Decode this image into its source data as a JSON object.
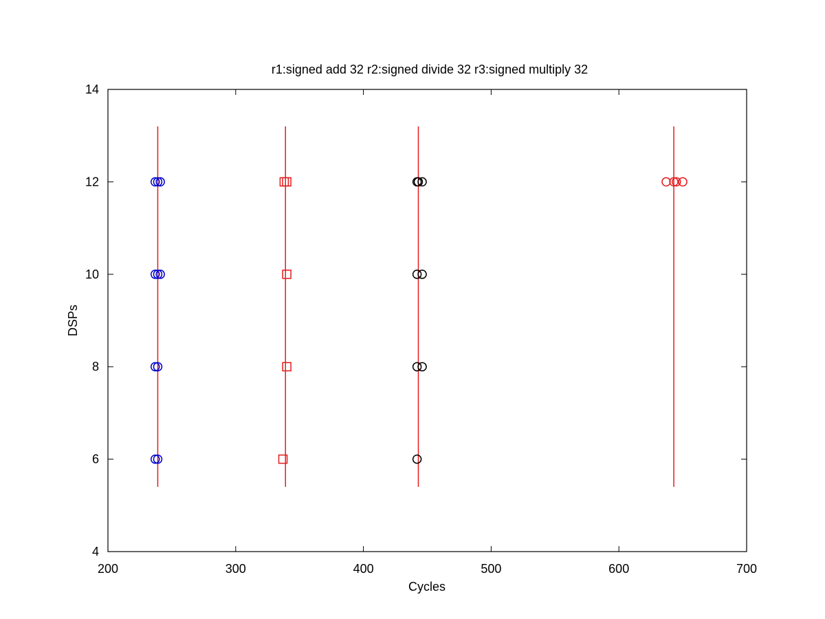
{
  "chart_data": {
    "type": "scatter",
    "title": "r1:signed add 32 r2:signed divide 32 r3:signed multiply 32",
    "xlabel": "Cycles",
    "ylabel": "DSPs",
    "xlim": [
      200,
      700
    ],
    "ylim": [
      4,
      14
    ],
    "xticks": [
      200,
      300,
      400,
      500,
      600,
      700
    ],
    "yticks": [
      4,
      6,
      8,
      10,
      12,
      14
    ],
    "grid": false,
    "vertical_lines": {
      "color": "#e41a1c",
      "x": [
        239,
        339,
        443,
        643
      ],
      "y_range": [
        5.4,
        13.2
      ]
    },
    "series": [
      {
        "marker": "circle",
        "color": "#0000cc",
        "points": [
          {
            "x": 237,
            "y": 6
          },
          {
            "x": 239,
            "y": 6
          },
          {
            "x": 237,
            "y": 8
          },
          {
            "x": 239,
            "y": 8
          },
          {
            "x": 237,
            "y": 10
          },
          {
            "x": 239,
            "y": 10
          },
          {
            "x": 241,
            "y": 10
          },
          {
            "x": 237,
            "y": 12
          },
          {
            "x": 239,
            "y": 12
          },
          {
            "x": 241,
            "y": 12
          }
        ]
      },
      {
        "marker": "square",
        "color": "#e41a1c",
        "points": [
          {
            "x": 337,
            "y": 6
          },
          {
            "x": 340,
            "y": 8
          },
          {
            "x": 340,
            "y": 10
          },
          {
            "x": 338,
            "y": 12
          },
          {
            "x": 340,
            "y": 12
          }
        ]
      },
      {
        "marker": "circle",
        "color": "#000000",
        "points": [
          {
            "x": 442,
            "y": 6
          },
          {
            "x": 442,
            "y": 8
          },
          {
            "x": 446,
            "y": 8
          },
          {
            "x": 442,
            "y": 10
          },
          {
            "x": 446,
            "y": 10
          },
          {
            "x": 442,
            "y": 12
          },
          {
            "x": 443,
            "y": 12
          },
          {
            "x": 446,
            "y": 12
          }
        ]
      },
      {
        "marker": "circle",
        "color": "#e41a1c",
        "points": [
          {
            "x": 637,
            "y": 12
          },
          {
            "x": 643,
            "y": 12
          },
          {
            "x": 645,
            "y": 12
          },
          {
            "x": 650,
            "y": 12
          }
        ]
      }
    ]
  }
}
